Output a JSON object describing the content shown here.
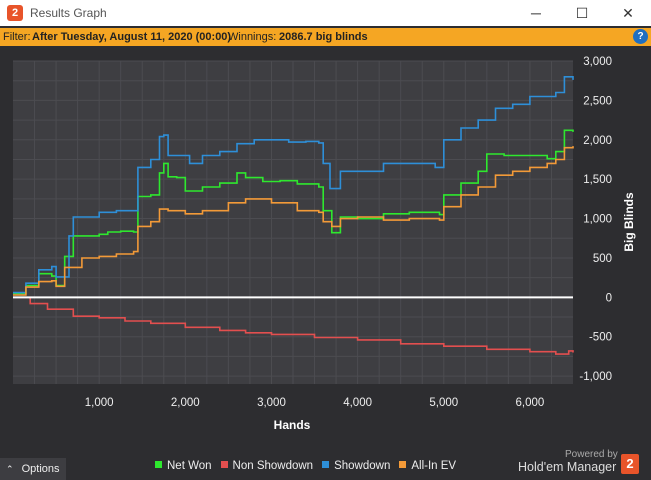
{
  "window": {
    "title": "Results Graph",
    "app_icon": "2",
    "minimize_icon": "─",
    "maximize_icon": "☐",
    "close_icon": "✕"
  },
  "filter": {
    "prefix": "Filter:",
    "condition": "After Tuesday, August 11, 2020 (00:00)",
    "winnings_label": "Winnings:",
    "winnings_value": "2086.7 big blinds",
    "help_icon": "?"
  },
  "footer": {
    "options_label": "Options",
    "options_icon": "⌃",
    "powered_by": "Powered by",
    "brand": "Hold'em Manager",
    "brand_logo": "2"
  },
  "chart_data": {
    "type": "line",
    "xlabel": "Hands",
    "ylabel": "Big Blinds",
    "xlim": [
      0,
      6500
    ],
    "ylim": [
      -1100,
      3000
    ],
    "x_ticks": [
      1000,
      2000,
      3000,
      4000,
      5000,
      6000
    ],
    "x_tick_labels": [
      "1,000",
      "2,000",
      "3,000",
      "4,000",
      "5,000",
      "6,000"
    ],
    "y_ticks": [
      3000,
      2500,
      2000,
      1500,
      1000,
      500,
      0,
      -500,
      -1000
    ],
    "y_tick_labels": [
      "3,000",
      "2,500",
      "2,000",
      "1,500",
      "1,000",
      "500",
      "0",
      "-500",
      "-1,000"
    ],
    "grid": true,
    "legend_position": "bottom",
    "zero_line_color": "#ffffff",
    "series": [
      {
        "name": "Net Won",
        "color": "#2ee82e",
        "points": [
          [
            0,
            50
          ],
          [
            150,
            150
          ],
          [
            300,
            300
          ],
          [
            450,
            270
          ],
          [
            500,
            150
          ],
          [
            600,
            520
          ],
          [
            700,
            780
          ],
          [
            1000,
            800
          ],
          [
            1100,
            830
          ],
          [
            1250,
            840
          ],
          [
            1400,
            830
          ],
          [
            1450,
            1280
          ],
          [
            1600,
            1300
          ],
          [
            1700,
            1580
          ],
          [
            1750,
            1700
          ],
          [
            1800,
            1530
          ],
          [
            1900,
            1520
          ],
          [
            2000,
            1350
          ],
          [
            2200,
            1400
          ],
          [
            2400,
            1450
          ],
          [
            2600,
            1580
          ],
          [
            2700,
            1520
          ],
          [
            2900,
            1470
          ],
          [
            3100,
            1480
          ],
          [
            3300,
            1440
          ],
          [
            3550,
            1400
          ],
          [
            3600,
            1100
          ],
          [
            3700,
            820
          ],
          [
            3800,
            1020
          ],
          [
            4000,
            1000
          ],
          [
            4300,
            1060
          ],
          [
            4600,
            1080
          ],
          [
            4950,
            1050
          ],
          [
            5000,
            1300
          ],
          [
            5200,
            1450
          ],
          [
            5400,
            1600
          ],
          [
            5500,
            1820
          ],
          [
            5700,
            1800
          ],
          [
            6000,
            1800
          ],
          [
            6200,
            1760
          ],
          [
            6300,
            1850
          ],
          [
            6400,
            2120
          ],
          [
            6500,
            2100
          ]
        ]
      },
      {
        "name": "Non Showdown",
        "color": "#e34f4f",
        "points": [
          [
            0,
            0
          ],
          [
            200,
            -80
          ],
          [
            400,
            -150
          ],
          [
            700,
            -240
          ],
          [
            1000,
            -260
          ],
          [
            1300,
            -300
          ],
          [
            1600,
            -330
          ],
          [
            2000,
            -380
          ],
          [
            2400,
            -420
          ],
          [
            2700,
            -450
          ],
          [
            3000,
            -470
          ],
          [
            3500,
            -510
          ],
          [
            4000,
            -540
          ],
          [
            4500,
            -590
          ],
          [
            5000,
            -620
          ],
          [
            5500,
            -660
          ],
          [
            6000,
            -690
          ],
          [
            6300,
            -720
          ],
          [
            6450,
            -680
          ],
          [
            6500,
            -700
          ]
        ]
      },
      {
        "name": "Showdown",
        "color": "#2e8fd8",
        "points": [
          [
            0,
            60
          ],
          [
            150,
            180
          ],
          [
            300,
            350
          ],
          [
            450,
            390
          ],
          [
            500,
            260
          ],
          [
            650,
            780
          ],
          [
            700,
            1020
          ],
          [
            1000,
            1080
          ],
          [
            1200,
            1100
          ],
          [
            1400,
            1100
          ],
          [
            1450,
            1650
          ],
          [
            1600,
            1750
          ],
          [
            1700,
            2040
          ],
          [
            1750,
            2060
          ],
          [
            1800,
            1800
          ],
          [
            1900,
            1800
          ],
          [
            2050,
            1700
          ],
          [
            2200,
            1800
          ],
          [
            2400,
            1850
          ],
          [
            2600,
            1950
          ],
          [
            2800,
            2000
          ],
          [
            3000,
            2000
          ],
          [
            3200,
            1970
          ],
          [
            3400,
            1980
          ],
          [
            3550,
            1960
          ],
          [
            3600,
            1700
          ],
          [
            3680,
            1380
          ],
          [
            3800,
            1600
          ],
          [
            4000,
            1600
          ],
          [
            4300,
            1700
          ],
          [
            4600,
            1700
          ],
          [
            4900,
            1650
          ],
          [
            5000,
            2000
          ],
          [
            5200,
            2150
          ],
          [
            5400,
            2250
          ],
          [
            5600,
            2400
          ],
          [
            5800,
            2450
          ],
          [
            6000,
            2550
          ],
          [
            6200,
            2550
          ],
          [
            6300,
            2600
          ],
          [
            6400,
            2800
          ],
          [
            6500,
            2760
          ]
        ]
      },
      {
        "name": "All-In EV",
        "color": "#f39a38",
        "points": [
          [
            0,
            30
          ],
          [
            150,
            130
          ],
          [
            300,
            200
          ],
          [
            450,
            210
          ],
          [
            500,
            140
          ],
          [
            600,
            380
          ],
          [
            800,
            500
          ],
          [
            1000,
            520
          ],
          [
            1200,
            550
          ],
          [
            1400,
            580
          ],
          [
            1450,
            900
          ],
          [
            1600,
            960
          ],
          [
            1700,
            1120
          ],
          [
            1800,
            1100
          ],
          [
            2000,
            1060
          ],
          [
            2200,
            1100
          ],
          [
            2500,
            1200
          ],
          [
            2700,
            1250
          ],
          [
            3000,
            1200
          ],
          [
            3300,
            1100
          ],
          [
            3550,
            1080
          ],
          [
            3600,
            960
          ],
          [
            3700,
            900
          ],
          [
            3800,
            1000
          ],
          [
            4000,
            1020
          ],
          [
            4300,
            980
          ],
          [
            4600,
            1000
          ],
          [
            4950,
            980
          ],
          [
            5000,
            1150
          ],
          [
            5200,
            1300
          ],
          [
            5400,
            1400
          ],
          [
            5600,
            1550
          ],
          [
            5800,
            1600
          ],
          [
            6000,
            1650
          ],
          [
            6200,
            1700
          ],
          [
            6300,
            1750
          ],
          [
            6400,
            1900
          ],
          [
            6500,
            1920
          ]
        ]
      }
    ]
  }
}
